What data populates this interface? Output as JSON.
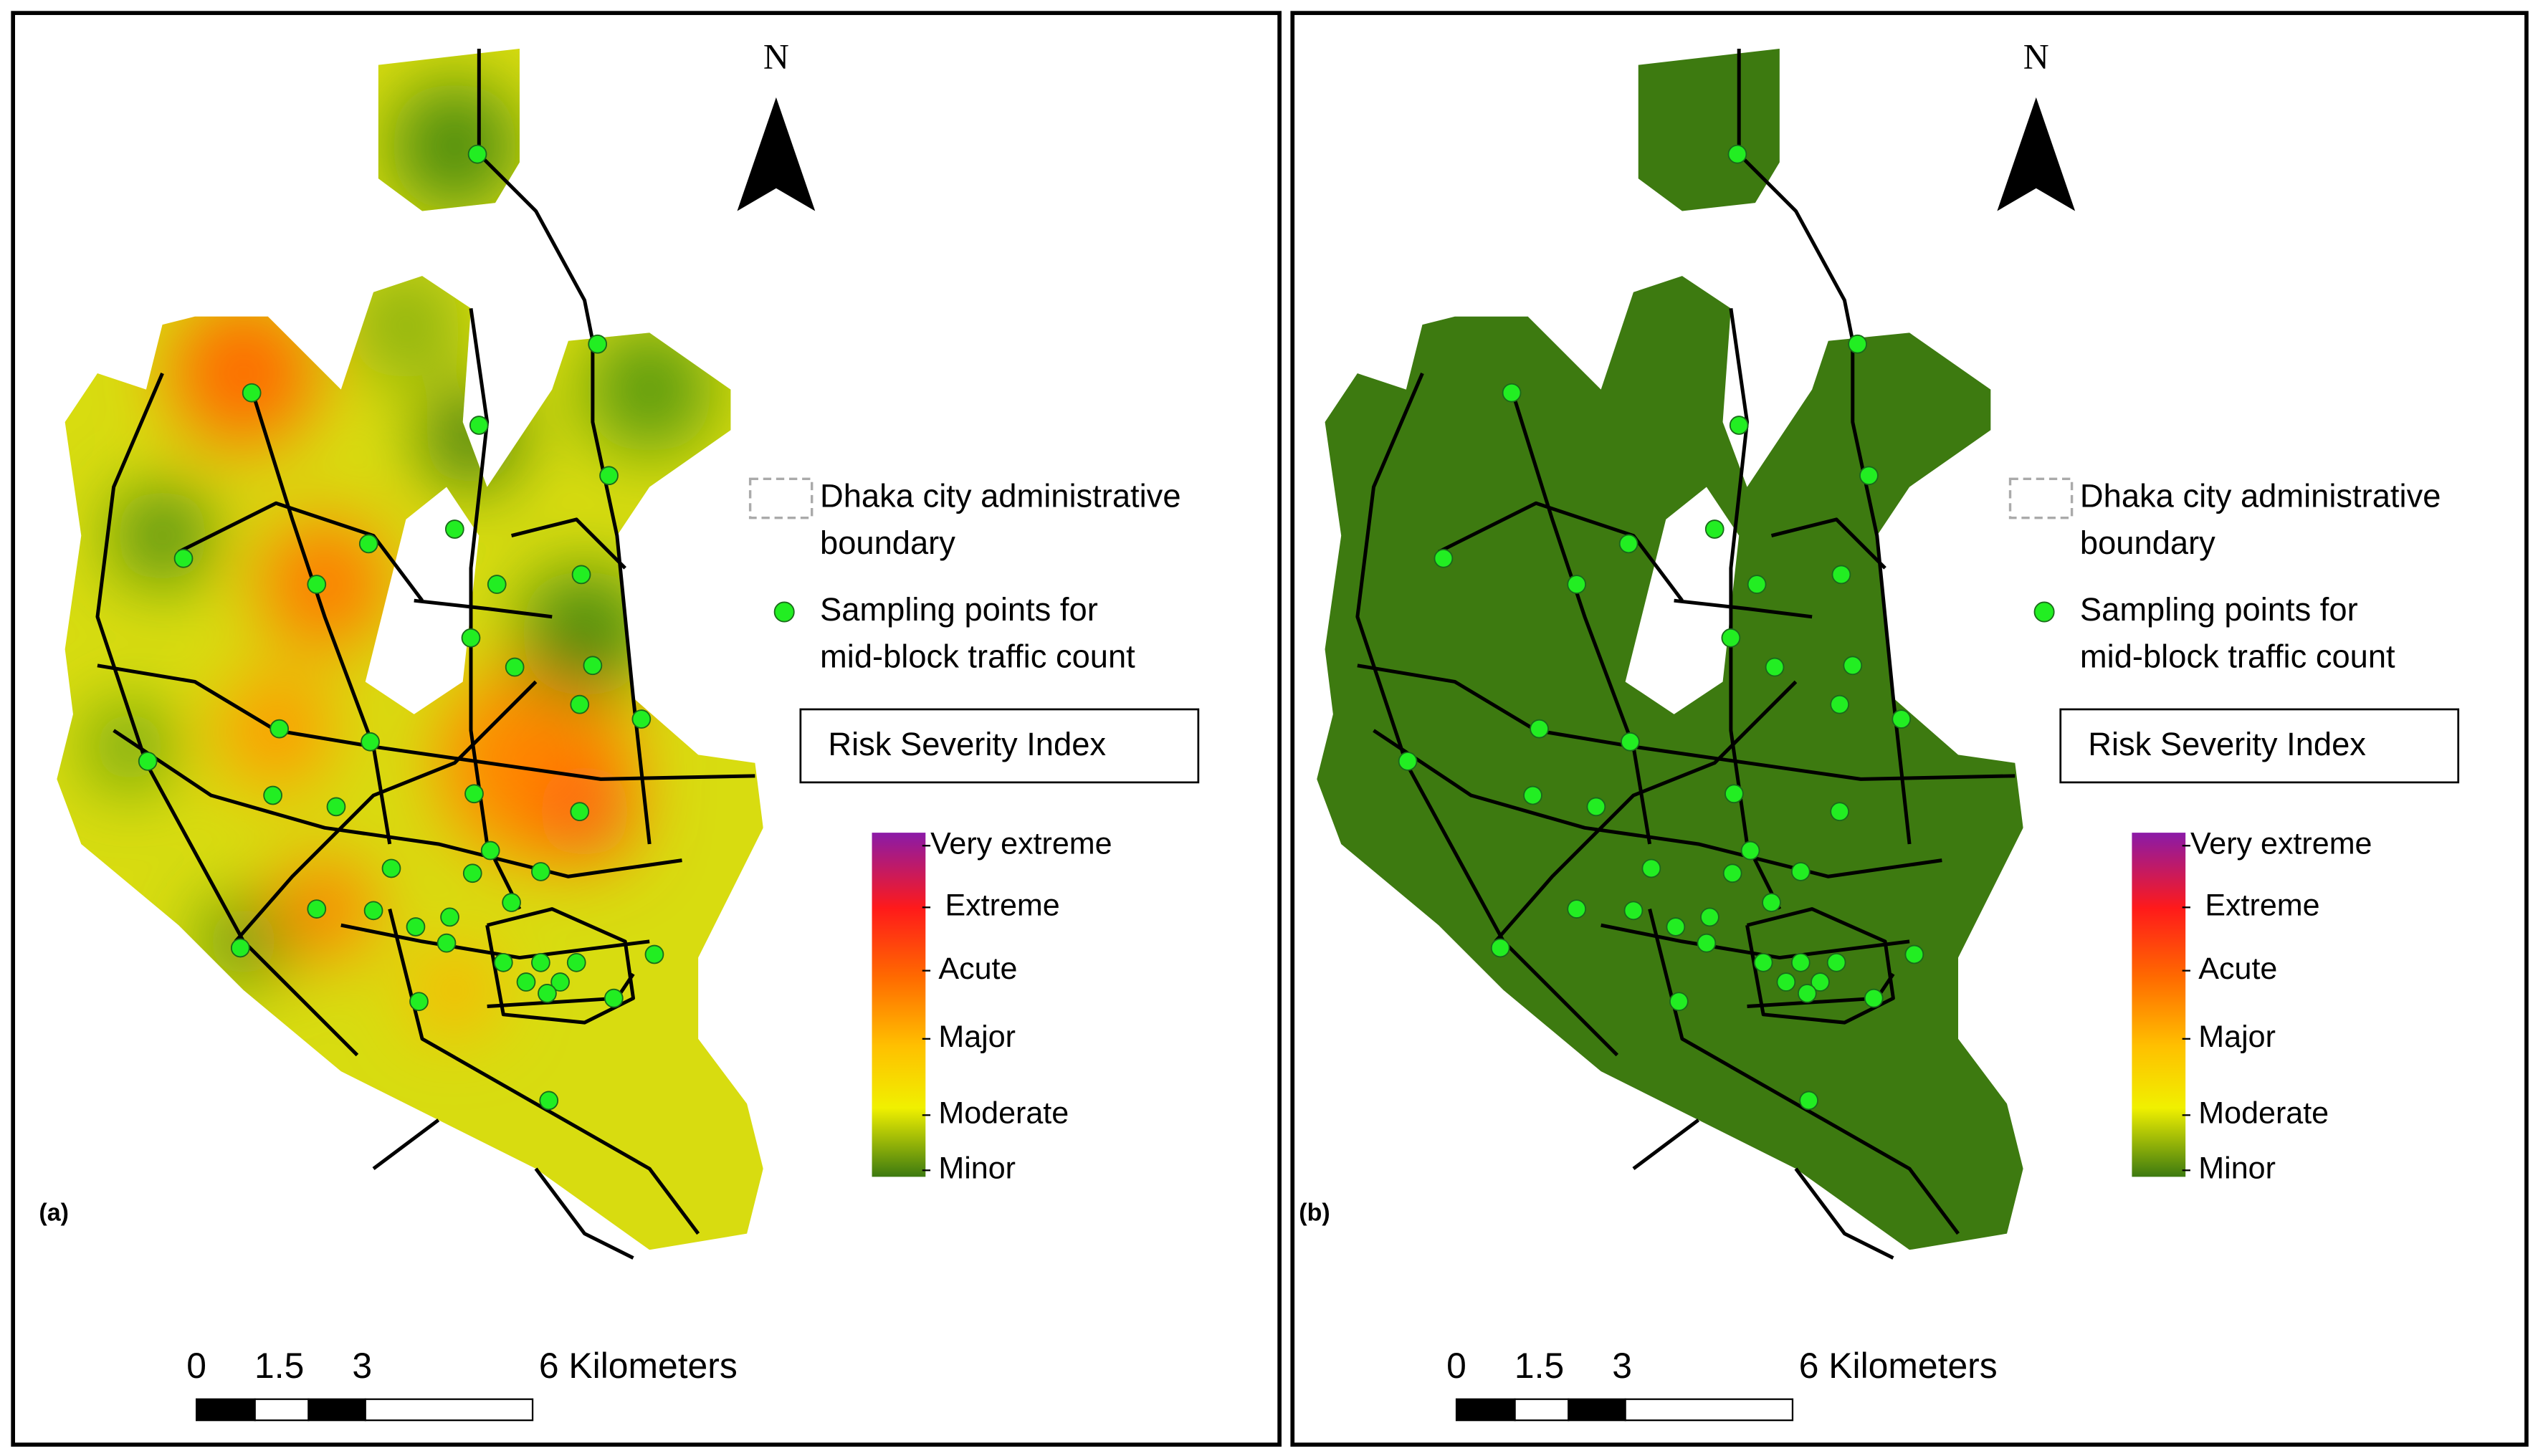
{
  "panels": [
    {
      "label": "(a)",
      "north": "N",
      "legend": {
        "boundary": [
          "Dhaka city administrative",
          "boundary"
        ],
        "sampling": [
          "Sampling points for",
          "mid-block traffic count"
        ],
        "index_title": "Risk Severity Index",
        "classes": [
          "Very extreme",
          "Extreme",
          "Acute",
          "Major",
          "Moderate",
          "Minor"
        ]
      },
      "scale": [
        "0",
        "1.5",
        "3",
        "6 Kilometers"
      ]
    },
    {
      "label": "(b)",
      "north": "N",
      "legend": {
        "boundary": [
          "Dhaka city administrative",
          "boundary"
        ],
        "sampling": [
          "Sampling points for",
          "mid-block traffic count"
        ],
        "index_title": "Risk Severity Index",
        "classes": [
          "Very extreme",
          "Extreme",
          "Acute",
          "Major",
          "Moderate",
          "Minor"
        ]
      },
      "scale": [
        "0",
        "1.5",
        "3",
        "6 Kilometers"
      ]
    }
  ]
}
